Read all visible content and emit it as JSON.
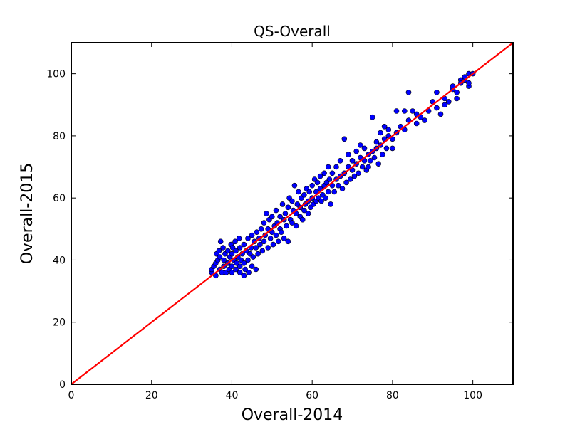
{
  "chart_data": {
    "type": "scatter",
    "title": "QS-Overall",
    "xlabel": "Overall-2014",
    "ylabel": "Overall-2015",
    "xlim": [
      0,
      110
    ],
    "ylim": [
      0,
      110
    ],
    "xticks": [
      0,
      20,
      40,
      60,
      80,
      100
    ],
    "yticks": [
      0,
      20,
      40,
      60,
      80,
      100
    ],
    "grid": false,
    "colors": {
      "points": "#0000ff",
      "point_edge": "#000000",
      "reference_line": "#ff0000"
    },
    "reference_line": {
      "x": [
        0,
        110
      ],
      "y": [
        0,
        110
      ]
    },
    "series": [
      {
        "points": [
          [
            35,
            36
          ],
          [
            35,
            37
          ],
          [
            35.5,
            38
          ],
          [
            36,
            39
          ],
          [
            36,
            35
          ],
          [
            36.2,
            42
          ],
          [
            36.5,
            40
          ],
          [
            36.8,
            43
          ],
          [
            37,
            37
          ],
          [
            37,
            41
          ],
          [
            37.2,
            46
          ],
          [
            37.5,
            36
          ],
          [
            37.8,
            44
          ],
          [
            38,
            38
          ],
          [
            38,
            40
          ],
          [
            38.3,
            42
          ],
          [
            38.6,
            36
          ],
          [
            39,
            39
          ],
          [
            39,
            43
          ],
          [
            39.3,
            37
          ],
          [
            39.5,
            41
          ],
          [
            39.8,
            45
          ],
          [
            40,
            36
          ],
          [
            40,
            38
          ],
          [
            40,
            42
          ],
          [
            40.2,
            44
          ],
          [
            40.5,
            40
          ],
          [
            40.8,
            46
          ],
          [
            41,
            37
          ],
          [
            41,
            43
          ],
          [
            41.2,
            39
          ],
          [
            41.5,
            41
          ],
          [
            41.8,
            47
          ],
          [
            42,
            36
          ],
          [
            42,
            38
          ],
          [
            42,
            44
          ],
          [
            42.3,
            40
          ],
          [
            42.6,
            42
          ],
          [
            43,
            35
          ],
          [
            43,
            39
          ],
          [
            43,
            45
          ],
          [
            43.3,
            37
          ],
          [
            43.6,
            43
          ],
          [
            44,
            40
          ],
          [
            44,
            47
          ],
          [
            44.2,
            36
          ],
          [
            44.5,
            42
          ],
          [
            44.8,
            44
          ],
          [
            45,
            38
          ],
          [
            45,
            48
          ],
          [
            45.3,
            41
          ],
          [
            45.6,
            46
          ],
          [
            46,
            37
          ],
          [
            46,
            44
          ],
          [
            46.2,
            49
          ],
          [
            46.5,
            42
          ],
          [
            46.8,
            47
          ],
          [
            47,
            45
          ],
          [
            47.3,
            50
          ],
          [
            47.6,
            43
          ],
          [
            48,
            46
          ],
          [
            48,
            52
          ],
          [
            48.3,
            48
          ],
          [
            48.6,
            55
          ],
          [
            49,
            44
          ],
          [
            49,
            50
          ],
          [
            49.3,
            53
          ],
          [
            49.6,
            47
          ],
          [
            50,
            49
          ],
          [
            50,
            54
          ],
          [
            50.3,
            45
          ],
          [
            50.6,
            51
          ],
          [
            51,
            48
          ],
          [
            51,
            56
          ],
          [
            51.3,
            52
          ],
          [
            51.6,
            46
          ],
          [
            52,
            50
          ],
          [
            52,
            54
          ],
          [
            52.3,
            49
          ],
          [
            52.6,
            58
          ],
          [
            53,
            47
          ],
          [
            53,
            53
          ],
          [
            53.3,
            55
          ],
          [
            53.6,
            51
          ],
          [
            54,
            46
          ],
          [
            54,
            57
          ],
          [
            54.3,
            60
          ],
          [
            54.6,
            53
          ],
          [
            55,
            52
          ],
          [
            55,
            59
          ],
          [
            55.3,
            56
          ],
          [
            55.6,
            64
          ],
          [
            56,
            51
          ],
          [
            56,
            55
          ],
          [
            56.3,
            58
          ],
          [
            56.6,
            62
          ],
          [
            57,
            54
          ],
          [
            57,
            57
          ],
          [
            57.3,
            60
          ],
          [
            57.6,
            53
          ],
          [
            58,
            56
          ],
          [
            58,
            61
          ],
          [
            58.3,
            58
          ],
          [
            58.6,
            63
          ],
          [
            59,
            55
          ],
          [
            59,
            59
          ],
          [
            59.3,
            62
          ],
          [
            59.6,
            57
          ],
          [
            60,
            60
          ],
          [
            60,
            64
          ],
          [
            60.3,
            58
          ],
          [
            60.6,
            66
          ],
          [
            61,
            59
          ],
          [
            61,
            62
          ],
          [
            61.3,
            65
          ],
          [
            61.6,
            60
          ],
          [
            62,
            63
          ],
          [
            62,
            67
          ],
          [
            62.3,
            59
          ],
          [
            62.6,
            61
          ],
          [
            63,
            64
          ],
          [
            63,
            68
          ],
          [
            63.3,
            60
          ],
          [
            63.6,
            65
          ],
          [
            64,
            62
          ],
          [
            64,
            70
          ],
          [
            64.3,
            66
          ],
          [
            64.6,
            58
          ],
          [
            65,
            64
          ],
          [
            65,
            68
          ],
          [
            65.5,
            62
          ],
          [
            66,
            66
          ],
          [
            66,
            70
          ],
          [
            66.5,
            64
          ],
          [
            67,
            67
          ],
          [
            67,
            72
          ],
          [
            67.5,
            63
          ],
          [
            68,
            68
          ],
          [
            68,
            79
          ],
          [
            68.5,
            65
          ],
          [
            69,
            70
          ],
          [
            69,
            74
          ],
          [
            69.5,
            66
          ],
          [
            70,
            69
          ],
          [
            70,
            72
          ],
          [
            70.5,
            67
          ],
          [
            71,
            71
          ],
          [
            71,
            75
          ],
          [
            71.5,
            68
          ],
          [
            72,
            73
          ],
          [
            72,
            77
          ],
          [
            72.5,
            70
          ],
          [
            73,
            72
          ],
          [
            73,
            76
          ],
          [
            73.5,
            69
          ],
          [
            74,
            74
          ],
          [
            74,
            70
          ],
          [
            74.5,
            72
          ],
          [
            75,
            75
          ],
          [
            75,
            86
          ],
          [
            75.5,
            73
          ],
          [
            76,
            76
          ],
          [
            76,
            78
          ],
          [
            76.5,
            71
          ],
          [
            77,
            77
          ],
          [
            77,
            81
          ],
          [
            77.5,
            74
          ],
          [
            78,
            79
          ],
          [
            78,
            83
          ],
          [
            78.5,
            76
          ],
          [
            79,
            80
          ],
          [
            79,
            82
          ],
          [
            80,
            79
          ],
          [
            80,
            76
          ],
          [
            81,
            88
          ],
          [
            81,
            81
          ],
          [
            82,
            83
          ],
          [
            83,
            82
          ],
          [
            83,
            88
          ],
          [
            84,
            94
          ],
          [
            84,
            85
          ],
          [
            85,
            88
          ],
          [
            86,
            84
          ],
          [
            86,
            87
          ],
          [
            87,
            86
          ],
          [
            88,
            85
          ],
          [
            89,
            88
          ],
          [
            90,
            91
          ],
          [
            91,
            94
          ],
          [
            91,
            89
          ],
          [
            92,
            87
          ],
          [
            93,
            90
          ],
          [
            93,
            92
          ],
          [
            94,
            91
          ],
          [
            95,
            95
          ],
          [
            95,
            96
          ],
          [
            96,
            94
          ],
          [
            96,
            92
          ],
          [
            97,
            98
          ],
          [
            97,
            97
          ],
          [
            98,
            98
          ],
          [
            98,
            99
          ],
          [
            99,
            96
          ],
          [
            99,
            97
          ],
          [
            99,
            100
          ],
          [
            100,
            100
          ]
        ]
      }
    ]
  }
}
